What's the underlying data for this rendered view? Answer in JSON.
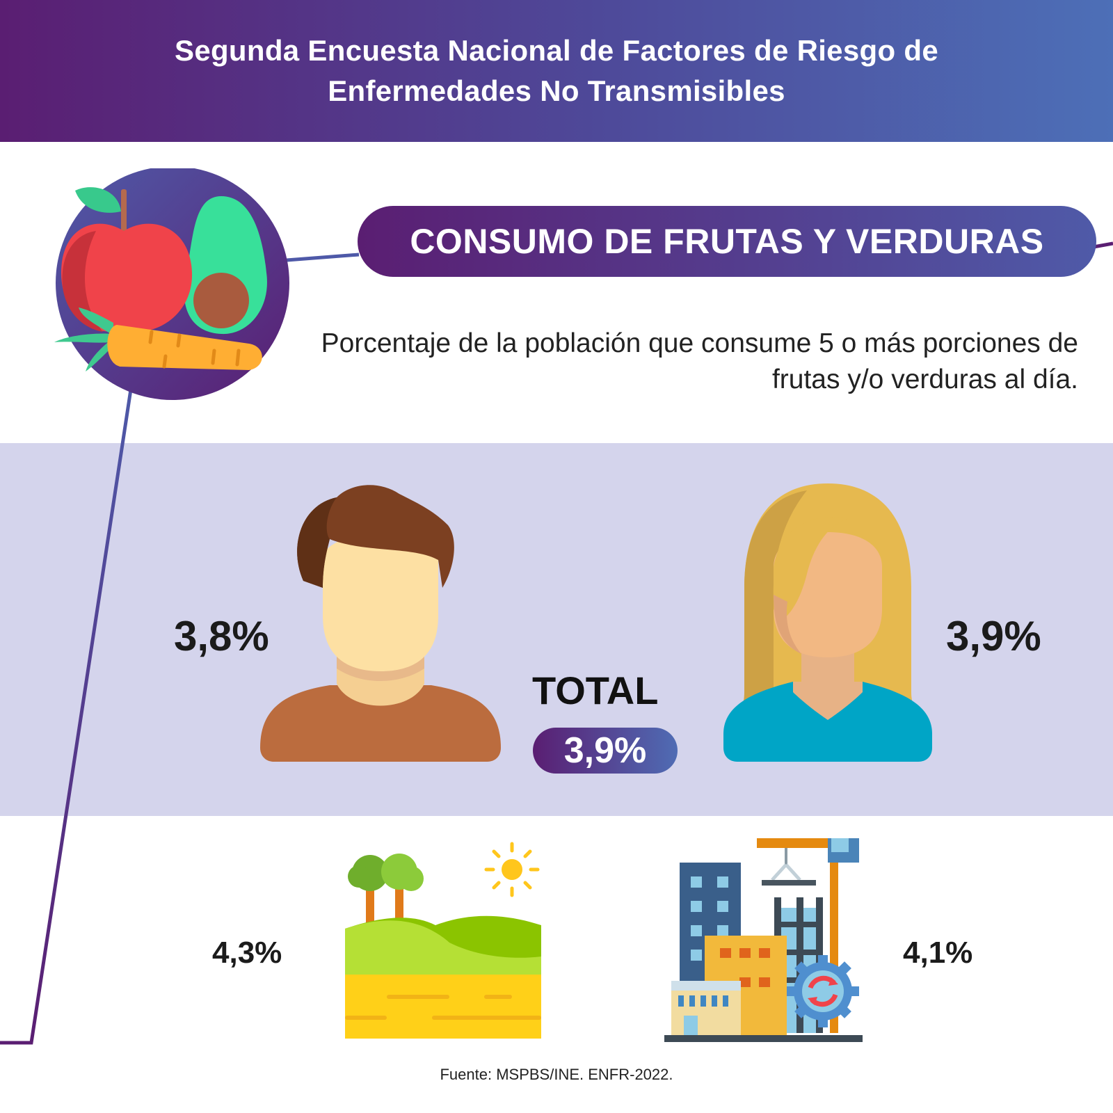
{
  "header": {
    "title": "Segunda Encuesta Nacional de Factores de Riesgo de Enfermedades No Transmisibles"
  },
  "section": {
    "title": "CONSUMO DE FRUTAS Y VERDURAS",
    "subtitle": "Porcentaje de la población que consume 5 o más porciones de frutas y/o verduras al día."
  },
  "sex": {
    "male_value": "3,8%",
    "female_value": "3,9%",
    "total_label": "TOTAL",
    "total_value": "3,9%"
  },
  "area": {
    "rural_value": "4,3%",
    "urban_value": "4,1%"
  },
  "icons": {
    "fruits": "fruits-vegetables-icon",
    "male": "man-avatar-icon",
    "female": "woman-avatar-icon",
    "rural": "countryside-icon",
    "urban": "city-icon"
  },
  "colors": {
    "purple": "#5a1e72",
    "blue": "#4d6fb7",
    "band": "#d4d4ec"
  },
  "footer": {
    "source": "Fuente: MSPBS/INE. ENFR-2022."
  }
}
